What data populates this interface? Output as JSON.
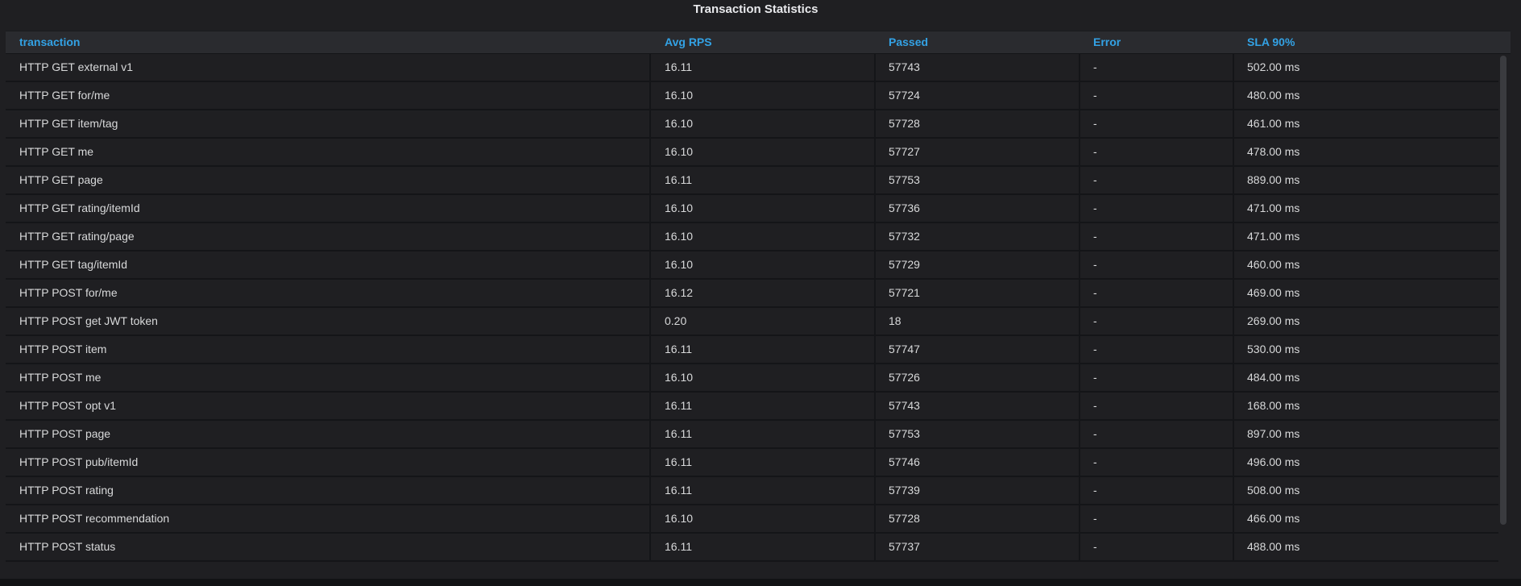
{
  "panel": {
    "title": "Transaction Statistics"
  },
  "table": {
    "columns": [
      "transaction",
      "Avg RPS",
      "Passed",
      "Error",
      "SLA 90%"
    ],
    "rows": [
      [
        "HTTP GET external v1",
        "16.11",
        "57743",
        "-",
        "502.00 ms"
      ],
      [
        "HTTP GET for/me",
        "16.10",
        "57724",
        "-",
        "480.00 ms"
      ],
      [
        "HTTP GET item/tag",
        "16.10",
        "57728",
        "-",
        "461.00 ms"
      ],
      [
        "HTTP GET me",
        "16.10",
        "57727",
        "-",
        "478.00 ms"
      ],
      [
        "HTTP GET page",
        "16.11",
        "57753",
        "-",
        "889.00 ms"
      ],
      [
        "HTTP GET rating/itemId",
        "16.10",
        "57736",
        "-",
        "471.00 ms"
      ],
      [
        "HTTP GET rating/page",
        "16.10",
        "57732",
        "-",
        "471.00 ms"
      ],
      [
        "HTTP GET tag/itemId",
        "16.10",
        "57729",
        "-",
        "460.00 ms"
      ],
      [
        "HTTP POST for/me",
        "16.12",
        "57721",
        "-",
        "469.00 ms"
      ],
      [
        "HTTP POST get JWT token",
        "0.20",
        "18",
        "-",
        "269.00 ms"
      ],
      [
        "HTTP POST item",
        "16.11",
        "57747",
        "-",
        "530.00 ms"
      ],
      [
        "HTTP POST me",
        "16.10",
        "57726",
        "-",
        "484.00 ms"
      ],
      [
        "HTTP POST opt v1",
        "16.11",
        "57743",
        "-",
        "168.00 ms"
      ],
      [
        "HTTP POST page",
        "16.11",
        "57753",
        "-",
        "897.00 ms"
      ],
      [
        "HTTP POST pub/itemId",
        "16.11",
        "57746",
        "-",
        "496.00 ms"
      ],
      [
        "HTTP POST rating",
        "16.11",
        "57739",
        "-",
        "508.00 ms"
      ],
      [
        "HTTP POST recommendation",
        "16.10",
        "57728",
        "-",
        "466.00 ms"
      ],
      [
        "HTTP POST status",
        "16.11",
        "57737",
        "-",
        "488.00 ms"
      ]
    ]
  },
  "colors": {
    "header_text": "#33a2e5",
    "cell_text": "#d8d9da",
    "panel_bg": "#1f1f22"
  }
}
